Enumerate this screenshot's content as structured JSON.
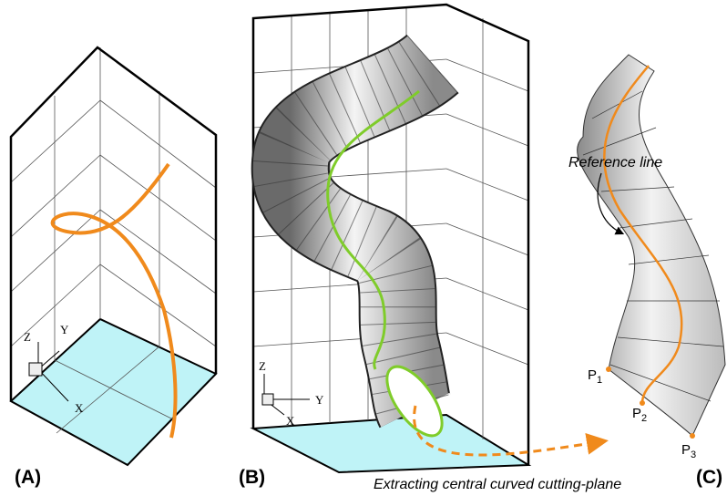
{
  "panels": [
    {
      "label": "(A)",
      "axes": {
        "z": "Z",
        "y": "Y",
        "x": "X"
      }
    },
    {
      "label": "(B)",
      "axes": {
        "z": "Z",
        "y": "Y",
        "x": "X"
      }
    },
    {
      "label": "(C)",
      "annotation": "Reference line",
      "points": [
        {
          "label": "P",
          "subscript": "1"
        },
        {
          "label": "P",
          "subscript": "2"
        },
        {
          "label": "P",
          "subscript": "3"
        }
      ]
    }
  ],
  "caption": "Extracting central curved cutting-plane"
}
